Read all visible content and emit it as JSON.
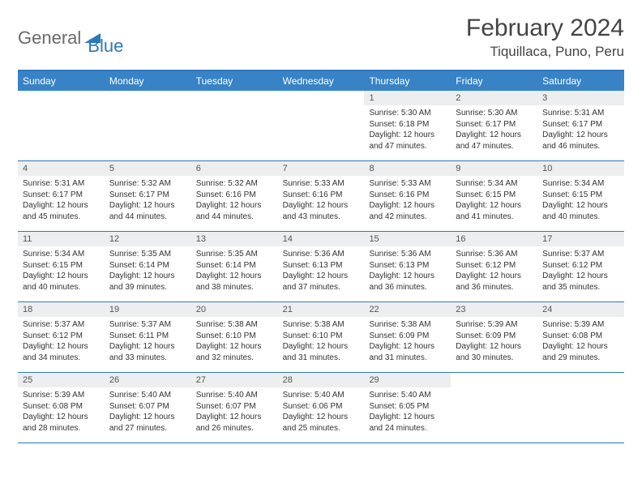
{
  "logo": {
    "general": "General",
    "blue": "Blue"
  },
  "title": "February 2024",
  "location": "Tiquillaca, Puno, Peru",
  "colors": {
    "accent": "#2d78bd",
    "header_bg": "#3783c6",
    "daynum_bg": "#eceeef"
  },
  "dow": [
    "Sunday",
    "Monday",
    "Tuesday",
    "Wednesday",
    "Thursday",
    "Friday",
    "Saturday"
  ],
  "weeks": [
    [
      {
        "n": "",
        "sr": "",
        "ss": "",
        "d1": "",
        "d2": ""
      },
      {
        "n": "",
        "sr": "",
        "ss": "",
        "d1": "",
        "d2": ""
      },
      {
        "n": "",
        "sr": "",
        "ss": "",
        "d1": "",
        "d2": ""
      },
      {
        "n": "",
        "sr": "",
        "ss": "",
        "d1": "",
        "d2": ""
      },
      {
        "n": "1",
        "sr": "Sunrise: 5:30 AM",
        "ss": "Sunset: 6:18 PM",
        "d1": "Daylight: 12 hours",
        "d2": "and 47 minutes."
      },
      {
        "n": "2",
        "sr": "Sunrise: 5:30 AM",
        "ss": "Sunset: 6:17 PM",
        "d1": "Daylight: 12 hours",
        "d2": "and 47 minutes."
      },
      {
        "n": "3",
        "sr": "Sunrise: 5:31 AM",
        "ss": "Sunset: 6:17 PM",
        "d1": "Daylight: 12 hours",
        "d2": "and 46 minutes."
      }
    ],
    [
      {
        "n": "4",
        "sr": "Sunrise: 5:31 AM",
        "ss": "Sunset: 6:17 PM",
        "d1": "Daylight: 12 hours",
        "d2": "and 45 minutes."
      },
      {
        "n": "5",
        "sr": "Sunrise: 5:32 AM",
        "ss": "Sunset: 6:17 PM",
        "d1": "Daylight: 12 hours",
        "d2": "and 44 minutes."
      },
      {
        "n": "6",
        "sr": "Sunrise: 5:32 AM",
        "ss": "Sunset: 6:16 PM",
        "d1": "Daylight: 12 hours",
        "d2": "and 44 minutes."
      },
      {
        "n": "7",
        "sr": "Sunrise: 5:33 AM",
        "ss": "Sunset: 6:16 PM",
        "d1": "Daylight: 12 hours",
        "d2": "and 43 minutes."
      },
      {
        "n": "8",
        "sr": "Sunrise: 5:33 AM",
        "ss": "Sunset: 6:16 PM",
        "d1": "Daylight: 12 hours",
        "d2": "and 42 minutes."
      },
      {
        "n": "9",
        "sr": "Sunrise: 5:34 AM",
        "ss": "Sunset: 6:15 PM",
        "d1": "Daylight: 12 hours",
        "d2": "and 41 minutes."
      },
      {
        "n": "10",
        "sr": "Sunrise: 5:34 AM",
        "ss": "Sunset: 6:15 PM",
        "d1": "Daylight: 12 hours",
        "d2": "and 40 minutes."
      }
    ],
    [
      {
        "n": "11",
        "sr": "Sunrise: 5:34 AM",
        "ss": "Sunset: 6:15 PM",
        "d1": "Daylight: 12 hours",
        "d2": "and 40 minutes."
      },
      {
        "n": "12",
        "sr": "Sunrise: 5:35 AM",
        "ss": "Sunset: 6:14 PM",
        "d1": "Daylight: 12 hours",
        "d2": "and 39 minutes."
      },
      {
        "n": "13",
        "sr": "Sunrise: 5:35 AM",
        "ss": "Sunset: 6:14 PM",
        "d1": "Daylight: 12 hours",
        "d2": "and 38 minutes."
      },
      {
        "n": "14",
        "sr": "Sunrise: 5:36 AM",
        "ss": "Sunset: 6:13 PM",
        "d1": "Daylight: 12 hours",
        "d2": "and 37 minutes."
      },
      {
        "n": "15",
        "sr": "Sunrise: 5:36 AM",
        "ss": "Sunset: 6:13 PM",
        "d1": "Daylight: 12 hours",
        "d2": "and 36 minutes."
      },
      {
        "n": "16",
        "sr": "Sunrise: 5:36 AM",
        "ss": "Sunset: 6:12 PM",
        "d1": "Daylight: 12 hours",
        "d2": "and 36 minutes."
      },
      {
        "n": "17",
        "sr": "Sunrise: 5:37 AM",
        "ss": "Sunset: 6:12 PM",
        "d1": "Daylight: 12 hours",
        "d2": "and 35 minutes."
      }
    ],
    [
      {
        "n": "18",
        "sr": "Sunrise: 5:37 AM",
        "ss": "Sunset: 6:12 PM",
        "d1": "Daylight: 12 hours",
        "d2": "and 34 minutes."
      },
      {
        "n": "19",
        "sr": "Sunrise: 5:37 AM",
        "ss": "Sunset: 6:11 PM",
        "d1": "Daylight: 12 hours",
        "d2": "and 33 minutes."
      },
      {
        "n": "20",
        "sr": "Sunrise: 5:38 AM",
        "ss": "Sunset: 6:10 PM",
        "d1": "Daylight: 12 hours",
        "d2": "and 32 minutes."
      },
      {
        "n": "21",
        "sr": "Sunrise: 5:38 AM",
        "ss": "Sunset: 6:10 PM",
        "d1": "Daylight: 12 hours",
        "d2": "and 31 minutes."
      },
      {
        "n": "22",
        "sr": "Sunrise: 5:38 AM",
        "ss": "Sunset: 6:09 PM",
        "d1": "Daylight: 12 hours",
        "d2": "and 31 minutes."
      },
      {
        "n": "23",
        "sr": "Sunrise: 5:39 AM",
        "ss": "Sunset: 6:09 PM",
        "d1": "Daylight: 12 hours",
        "d2": "and 30 minutes."
      },
      {
        "n": "24",
        "sr": "Sunrise: 5:39 AM",
        "ss": "Sunset: 6:08 PM",
        "d1": "Daylight: 12 hours",
        "d2": "and 29 minutes."
      }
    ],
    [
      {
        "n": "25",
        "sr": "Sunrise: 5:39 AM",
        "ss": "Sunset: 6:08 PM",
        "d1": "Daylight: 12 hours",
        "d2": "and 28 minutes."
      },
      {
        "n": "26",
        "sr": "Sunrise: 5:40 AM",
        "ss": "Sunset: 6:07 PM",
        "d1": "Daylight: 12 hours",
        "d2": "and 27 minutes."
      },
      {
        "n": "27",
        "sr": "Sunrise: 5:40 AM",
        "ss": "Sunset: 6:07 PM",
        "d1": "Daylight: 12 hours",
        "d2": "and 26 minutes."
      },
      {
        "n": "28",
        "sr": "Sunrise: 5:40 AM",
        "ss": "Sunset: 6:06 PM",
        "d1": "Daylight: 12 hours",
        "d2": "and 25 minutes."
      },
      {
        "n": "29",
        "sr": "Sunrise: 5:40 AM",
        "ss": "Sunset: 6:05 PM",
        "d1": "Daylight: 12 hours",
        "d2": "and 24 minutes."
      },
      {
        "n": "",
        "sr": "",
        "ss": "",
        "d1": "",
        "d2": ""
      },
      {
        "n": "",
        "sr": "",
        "ss": "",
        "d1": "",
        "d2": ""
      }
    ]
  ]
}
